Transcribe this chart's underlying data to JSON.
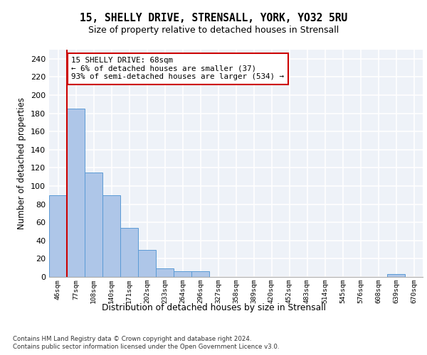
{
  "title_line1": "15, SHELLY DRIVE, STRENSALL, YORK, YO32 5RU",
  "title_line2": "Size of property relative to detached houses in Strensall",
  "xlabel": "Distribution of detached houses by size in Strensall",
  "ylabel": "Number of detached properties",
  "categories": [
    "46sqm",
    "77sqm",
    "108sqm",
    "140sqm",
    "171sqm",
    "202sqm",
    "233sqm",
    "264sqm",
    "296sqm",
    "327sqm",
    "358sqm",
    "389sqm",
    "420sqm",
    "452sqm",
    "483sqm",
    "514sqm",
    "545sqm",
    "576sqm",
    "608sqm",
    "639sqm",
    "670sqm"
  ],
  "values": [
    90,
    185,
    115,
    90,
    54,
    30,
    9,
    6,
    6,
    0,
    0,
    0,
    0,
    0,
    0,
    0,
    0,
    0,
    0,
    3,
    0
  ],
  "bar_color": "#aec6e8",
  "bar_edgecolor": "#5b9bd5",
  "ylim": [
    0,
    250
  ],
  "yticks": [
    0,
    20,
    40,
    60,
    80,
    100,
    120,
    140,
    160,
    180,
    200,
    220,
    240
  ],
  "property_label": "15 SHELLY DRIVE: 68sqm",
  "annotation_line1": "← 6% of detached houses are smaller (37)",
  "annotation_line2": "93% of semi-detached houses are larger (534) →",
  "vline_x": 0.5,
  "box_color": "#cc0000",
  "footnote1": "Contains HM Land Registry data © Crown copyright and database right 2024.",
  "footnote2": "Contains public sector information licensed under the Open Government Licence v3.0.",
  "background_color": "#eef2f8",
  "grid_color": "#ffffff",
  "fig_bg": "#ffffff"
}
